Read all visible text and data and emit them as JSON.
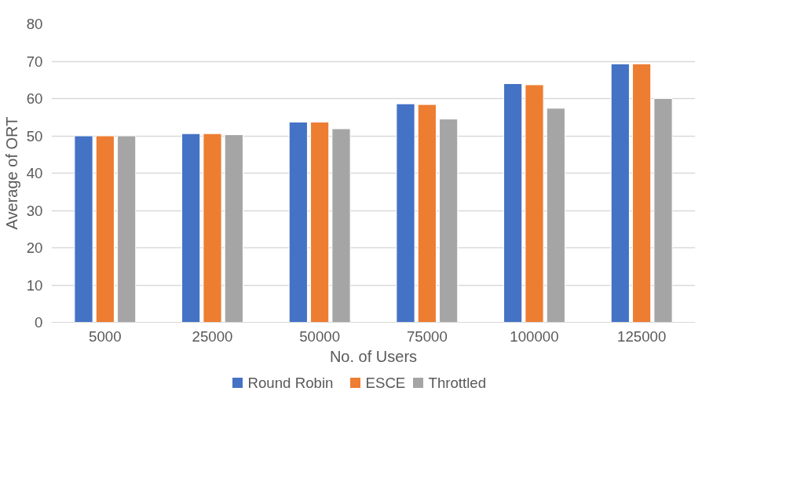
{
  "chart_data": {
    "type": "bar",
    "xlabel": "No. of Users",
    "ylabel": "Average of ORT",
    "categories": [
      "5000",
      "25000",
      "50000",
      "75000",
      "100000",
      "125000"
    ],
    "series": [
      {
        "name": "Round Robin",
        "color": "#4472c4",
        "values": [
          50.0,
          50.6,
          53.7,
          58.6,
          64.0,
          69.3
        ]
      },
      {
        "name": "ESCE",
        "color": "#ed7d31",
        "values": [
          50.0,
          50.6,
          53.7,
          58.4,
          63.7,
          69.3
        ]
      },
      {
        "name": "Throttled",
        "color": "#a5a5a5",
        "values": [
          50.0,
          50.3,
          51.9,
          54.5,
          57.4,
          60.0
        ]
      }
    ],
    "ylim": [
      0,
      80
    ],
    "yticks": [
      0,
      10,
      20,
      30,
      40,
      50,
      60,
      70,
      80
    ],
    "grid": "y",
    "legend": "bottom"
  }
}
